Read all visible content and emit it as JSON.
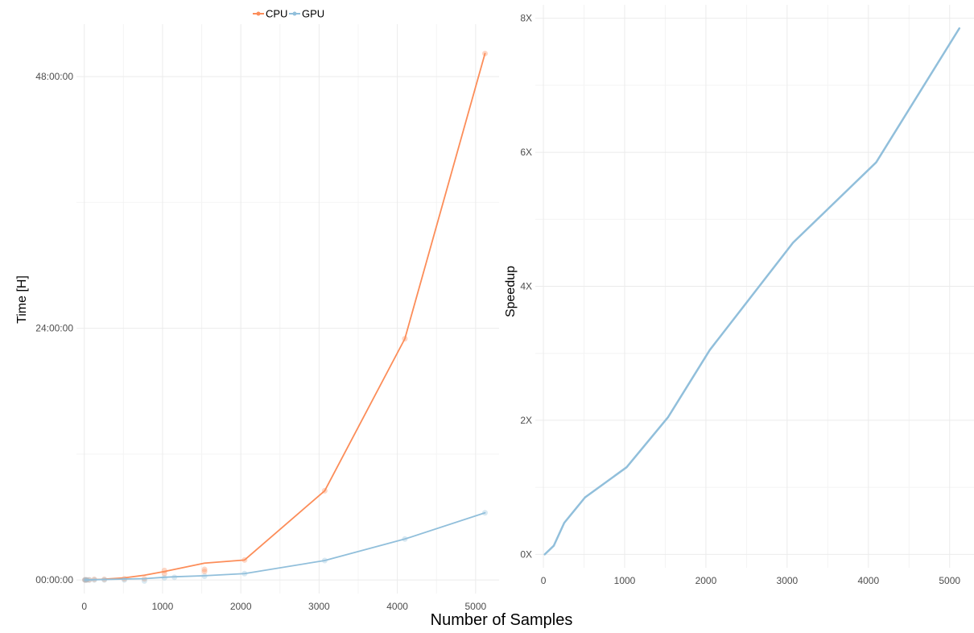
{
  "figure": {
    "xlabel": "Number of Samples"
  },
  "colors": {
    "cpu": "#fc8d59",
    "gpu": "#91bfdb"
  },
  "chart_data": [
    {
      "type": "line",
      "ylabel": "Time [H]",
      "y_unit": "hours",
      "xlim": [
        -100,
        5300
      ],
      "ylim": [
        -1.3,
        53
      ],
      "x_ticks": [
        0,
        1000,
        2000,
        3000,
        4000,
        5000
      ],
      "y_ticks": [
        0,
        24,
        48
      ],
      "y_tick_labels": [
        "00:00:00",
        "24:00:00",
        "48:00:00"
      ],
      "grid": true,
      "legend": {
        "position": "top",
        "entries": [
          "CPU",
          "GPU"
        ]
      },
      "series": [
        {
          "name": "CPU",
          "x": [
            8,
            16,
            32,
            64,
            128,
            256,
            512,
            768,
            1024,
            1536,
            2048,
            3072,
            4096,
            5120
          ],
          "y": [
            0.0,
            0.0,
            0.0,
            0.01,
            0.03,
            0.07,
            0.2,
            0.45,
            0.8,
            1.6,
            1.9,
            8.5,
            23.0,
            50.2
          ],
          "points": [
            [
              8,
              0.0
            ],
            [
              16,
              0.0
            ],
            [
              32,
              0.0
            ],
            [
              64,
              0.0
            ],
            [
              128,
              0.05
            ],
            [
              256,
              0.05
            ],
            [
              512,
              0.1
            ],
            [
              768,
              0.1
            ],
            [
              1024,
              0.6
            ],
            [
              1024,
              0.9
            ],
            [
              1536,
              0.8
            ],
            [
              1536,
              1.0
            ],
            [
              2048,
              1.9
            ],
            [
              3072,
              8.5
            ],
            [
              4096,
              23.0
            ],
            [
              5120,
              50.2
            ]
          ]
        },
        {
          "name": "GPU",
          "x": [
            8,
            16,
            32,
            64,
            128,
            256,
            512,
            768,
            1024,
            1152,
            1536,
            2048,
            3072,
            4096,
            5120
          ],
          "y": [
            0.0,
            0.0,
            0.0,
            0.0,
            0.02,
            0.04,
            0.08,
            0.12,
            0.25,
            0.3,
            0.4,
            0.6,
            1.85,
            3.9,
            6.4
          ],
          "points": [
            [
              8,
              0.0
            ],
            [
              16,
              0.0
            ],
            [
              32,
              0.0
            ],
            [
              64,
              0.0
            ],
            [
              128,
              0.0
            ],
            [
              256,
              0.0
            ],
            [
              512,
              0.0
            ],
            [
              768,
              -0.1
            ],
            [
              1024,
              0.2
            ],
            [
              1152,
              0.25
            ],
            [
              1536,
              0.35
            ],
            [
              2048,
              0.6
            ],
            [
              3072,
              1.85
            ],
            [
              4096,
              3.9
            ],
            [
              5120,
              6.4
            ]
          ]
        }
      ]
    },
    {
      "type": "line",
      "ylabel": "Speedup",
      "xlim": [
        -100,
        5300
      ],
      "ylim": [
        -0.2,
        8.2
      ],
      "x_ticks": [
        0,
        1000,
        2000,
        3000,
        4000,
        5000
      ],
      "y_ticks": [
        0,
        2,
        4,
        6,
        8
      ],
      "y_tick_labels": [
        "0X",
        "2X",
        "4X",
        "6X",
        "8X"
      ],
      "grid": true,
      "series": [
        {
          "x": [
            16,
            128,
            256,
            512,
            1024,
            1536,
            2048,
            3072,
            4096,
            5120
          ],
          "y": [
            0.0,
            0.13,
            0.47,
            0.85,
            1.3,
            2.05,
            3.05,
            4.65,
            5.85,
            7.85
          ]
        }
      ]
    }
  ]
}
